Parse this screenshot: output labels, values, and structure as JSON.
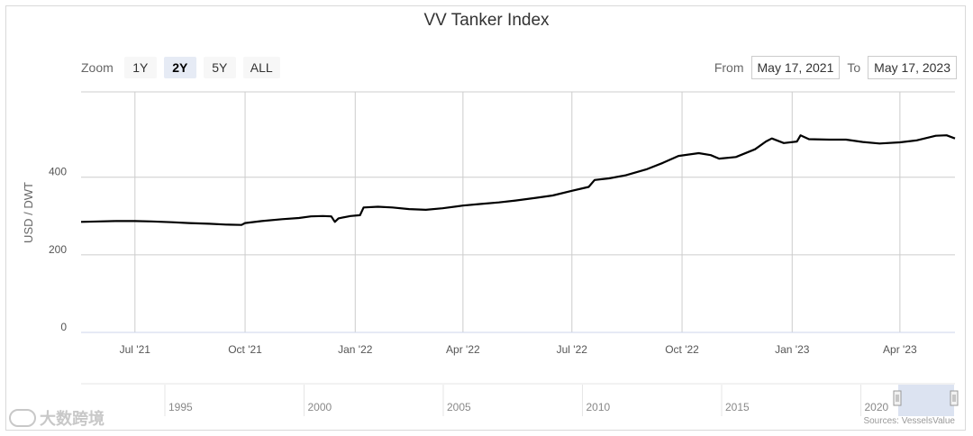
{
  "chart_data": {
    "type": "line",
    "title": "VV Tanker Index",
    "ylabel": "USD / DWT",
    "xlabel": "",
    "ylim": [
      0,
      620
    ],
    "grid": true,
    "yticks": [
      0,
      200,
      400
    ],
    "ytick_labels": [
      "0",
      "200",
      "400"
    ],
    "xticks": [
      {
        "date": "2021-07-01",
        "label": "Jul '21"
      },
      {
        "date": "2021-10-01",
        "label": "Oct '21"
      },
      {
        "date": "2022-01-01",
        "label": "Jan '22"
      },
      {
        "date": "2022-04-01",
        "label": "Apr '22"
      },
      {
        "date": "2022-07-01",
        "label": "Jul '22"
      },
      {
        "date": "2022-10-01",
        "label": "Oct '22"
      },
      {
        "date": "2023-01-01",
        "label": "Jan '23"
      },
      {
        "date": "2023-04-01",
        "label": "Apr '23"
      }
    ],
    "x_range": [
      "2021-05-17",
      "2023-05-17"
    ],
    "series": [
      {
        "color": "#000000",
        "points": [
          [
            "2021-05-17",
            285
          ],
          [
            "2021-06-01",
            286
          ],
          [
            "2021-06-15",
            287
          ],
          [
            "2021-07-01",
            287
          ],
          [
            "2021-07-15",
            286
          ],
          [
            "2021-08-01",
            284
          ],
          [
            "2021-08-15",
            282
          ],
          [
            "2021-09-01",
            280
          ],
          [
            "2021-09-15",
            278
          ],
          [
            "2021-09-28",
            277
          ],
          [
            "2021-10-01",
            282
          ],
          [
            "2021-10-15",
            287
          ],
          [
            "2021-11-01",
            292
          ],
          [
            "2021-11-15",
            295
          ],
          [
            "2021-11-25",
            299
          ],
          [
            "2021-12-05",
            300
          ],
          [
            "2021-12-12",
            299
          ],
          [
            "2021-12-15",
            285
          ],
          [
            "2021-12-18",
            294
          ],
          [
            "2021-12-28",
            300
          ],
          [
            "2022-01-05",
            302
          ],
          [
            "2022-01-08",
            322
          ],
          [
            "2022-01-20",
            324
          ],
          [
            "2022-02-01",
            322
          ],
          [
            "2022-02-15",
            318
          ],
          [
            "2022-03-01",
            316
          ],
          [
            "2022-03-15",
            320
          ],
          [
            "2022-04-01",
            327
          ],
          [
            "2022-04-15",
            331
          ],
          [
            "2022-05-01",
            335
          ],
          [
            "2022-05-15",
            340
          ],
          [
            "2022-06-01",
            347
          ],
          [
            "2022-06-15",
            353
          ],
          [
            "2022-07-01",
            365
          ],
          [
            "2022-07-15",
            375
          ],
          [
            "2022-07-20",
            393
          ],
          [
            "2022-08-01",
            397
          ],
          [
            "2022-08-15",
            405
          ],
          [
            "2022-09-01",
            420
          ],
          [
            "2022-09-15",
            437
          ],
          [
            "2022-09-28",
            455
          ],
          [
            "2022-10-15",
            462
          ],
          [
            "2022-10-25",
            457
          ],
          [
            "2022-11-01",
            448
          ],
          [
            "2022-11-15",
            452
          ],
          [
            "2022-12-01",
            472
          ],
          [
            "2022-12-10",
            492
          ],
          [
            "2022-12-15",
            500
          ],
          [
            "2022-12-25",
            488
          ],
          [
            "2023-01-05",
            492
          ],
          [
            "2023-01-08",
            508
          ],
          [
            "2023-01-15",
            498
          ],
          [
            "2023-02-01",
            497
          ],
          [
            "2023-02-15",
            497
          ],
          [
            "2023-03-01",
            491
          ],
          [
            "2023-03-15",
            487
          ],
          [
            "2023-04-01",
            490
          ],
          [
            "2023-04-15",
            495
          ],
          [
            "2023-05-01",
            507
          ],
          [
            "2023-05-10",
            508
          ],
          [
            "2023-05-17",
            500
          ]
        ]
      }
    ]
  },
  "zoom": {
    "label": "Zoom",
    "buttons": [
      {
        "label": "1Y",
        "active": false
      },
      {
        "label": "2Y",
        "active": true
      },
      {
        "label": "5Y",
        "active": false
      },
      {
        "label": "ALL",
        "active": false
      }
    ]
  },
  "range": {
    "from_label": "From",
    "from_value": "May 17, 2021",
    "to_label": "To",
    "to_value": "May 17, 2023"
  },
  "navigator": {
    "ticks": [
      "1995",
      "2000",
      "2005",
      "2010",
      "2015",
      "2020"
    ]
  },
  "credits": "Sources: VesselsValue",
  "watermark": "大数跨境",
  "colors": {
    "line": "#000000",
    "grid": "#cccccc",
    "navigator_mask": "#d8e0f0"
  }
}
